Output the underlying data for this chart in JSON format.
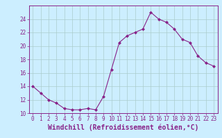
{
  "x": [
    0,
    1,
    2,
    3,
    4,
    5,
    6,
    7,
    8,
    9,
    10,
    11,
    12,
    13,
    14,
    15,
    16,
    17,
    18,
    19,
    20,
    21,
    22,
    23
  ],
  "y": [
    14,
    13,
    12,
    11.5,
    10.7,
    10.5,
    10.5,
    10.7,
    10.5,
    12.5,
    16.5,
    20.5,
    21.5,
    22,
    22.5,
    25,
    24,
    23.5,
    22.5,
    21,
    20.5,
    18.5,
    17.5,
    17
  ],
  "line_color": "#882288",
  "marker": "D",
  "marker_size": 2.0,
  "bg_color": "#cceeff",
  "grid_color": "#aacccc",
  "xlabel": "Windchill (Refroidissement éolien,°C)",
  "ylim": [
    10,
    26
  ],
  "xlim": [
    -0.5,
    23.5
  ],
  "yticks": [
    10,
    12,
    14,
    16,
    18,
    20,
    22,
    24
  ],
  "xticks": [
    0,
    1,
    2,
    3,
    4,
    5,
    6,
    7,
    8,
    9,
    10,
    11,
    12,
    13,
    14,
    15,
    16,
    17,
    18,
    19,
    20,
    21,
    22,
    23
  ],
  "tick_color": "#882288",
  "label_color": "#882288",
  "tick_fontsize": 5.5,
  "xlabel_fontsize": 7.0
}
